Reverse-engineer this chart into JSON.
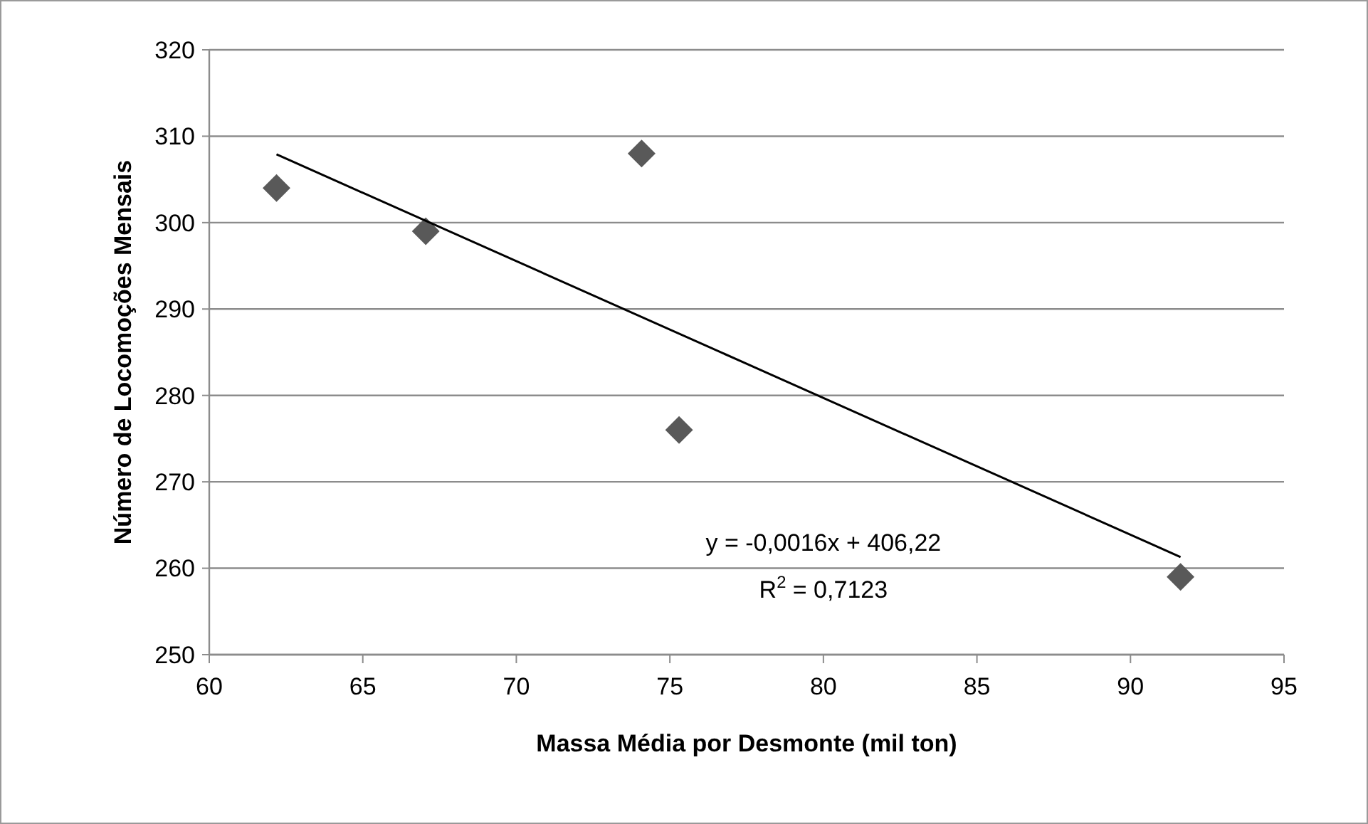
{
  "chart_data": {
    "type": "scatter",
    "xlabel": "Massa Média por Desmonte (mil ton)",
    "ylabel": "Número de Locomoções Mensais",
    "series": [
      {
        "color": "#595959",
        "marker": "diamond",
        "x": [
          62.19,
          67.05,
          74.08,
          75.3,
          91.63
        ],
        "values": [
          304,
          299,
          308,
          276,
          259
        ]
      },
      {
        "type": "line",
        "color": "#000000",
        "marker": "none",
        "line_style": "solid",
        "x": [
          62.19,
          91.63
        ],
        "values": [
          307.9,
          261.3
        ]
      }
    ],
    "xlim": [
      60,
      95
    ],
    "xticks": [
      60,
      65,
      70,
      75,
      80,
      85,
      90,
      95
    ],
    "ylim": [
      250,
      320
    ],
    "yticks": [
      250,
      260,
      270,
      280,
      290,
      300,
      310,
      320
    ],
    "grid": "y",
    "annotations": [
      "y = -0,0016x + 406,22",
      "R$^{2}$ = 0,7123"
    ]
  }
}
